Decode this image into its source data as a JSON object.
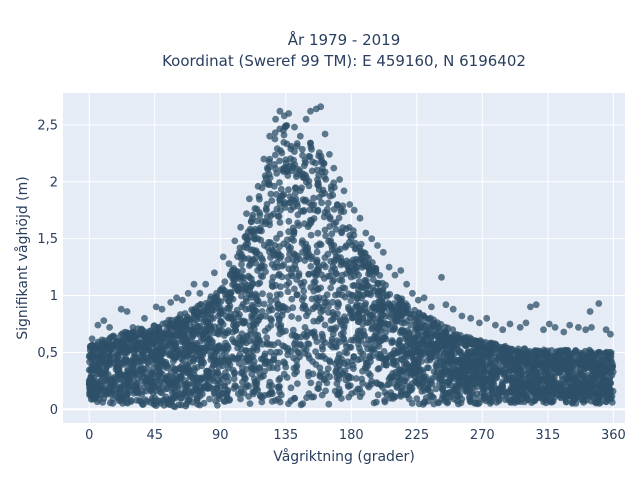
{
  "chart_data": {
    "type": "scatter",
    "title_line1": "År 1979 - 2019",
    "title_line2": "Koordinat (Sweref 99 TM): E 459160, N 6196402",
    "xlabel": "Vågriktning (grader)",
    "ylabel": "Signifikant våghöjd (m)",
    "xlim": [
      -18,
      368
    ],
    "ylim": [
      -0.12,
      2.78
    ],
    "xticks": [
      0,
      45,
      90,
      135,
      180,
      225,
      270,
      315,
      360
    ],
    "xtick_labels": [
      "0",
      "45",
      "90",
      "135",
      "180",
      "225",
      "270",
      "315",
      "360"
    ],
    "yticks": [
      0,
      0.5,
      1,
      1.5,
      2,
      2.5
    ],
    "ytick_labels": [
      "0",
      "0,5",
      "1",
      "1,5",
      "2",
      "2,5"
    ],
    "grid": true,
    "marker_color": "#2e5068",
    "envelope": {
      "description": "dense cloud of wave observations; approximate lower and upper bounds of the point cloud by direction",
      "x": [
        0,
        10,
        20,
        30,
        45,
        60,
        75,
        90,
        100,
        110,
        120,
        128,
        135,
        140,
        145,
        150,
        155,
        160,
        165,
        170,
        180,
        190,
        200,
        210,
        220,
        230,
        240,
        250,
        260,
        270,
        285,
        300,
        315,
        330,
        345,
        360
      ],
      "y_low": [
        0.05,
        0.05,
        0.05,
        0.05,
        0.03,
        0.02,
        0.02,
        0.03,
        0.04,
        0.04,
        0.04,
        0.04,
        0.04,
        0.04,
        0.04,
        0.04,
        0.04,
        0.04,
        0.04,
        0.04,
        0.04,
        0.04,
        0.04,
        0.04,
        0.04,
        0.04,
        0.04,
        0.04,
        0.04,
        0.05,
        0.05,
        0.05,
        0.05,
        0.05,
        0.05,
        0.05
      ],
      "y_high": [
        0.55,
        0.62,
        0.66,
        0.7,
        0.74,
        0.82,
        0.92,
        1.05,
        1.3,
        1.65,
        2.05,
        2.45,
        2.55,
        2.4,
        2.3,
        2.35,
        2.4,
        2.28,
        2.1,
        1.92,
        1.62,
        1.38,
        1.18,
        1.02,
        0.92,
        0.84,
        0.76,
        0.7,
        0.64,
        0.6,
        0.56,
        0.54,
        0.52,
        0.52,
        0.52,
        0.5
      ]
    },
    "outliers": [
      [
        2,
        0.62
      ],
      [
        6,
        0.74
      ],
      [
        10,
        0.78
      ],
      [
        14,
        0.72
      ],
      [
        22,
        0.88
      ],
      [
        26,
        0.86
      ],
      [
        30,
        0.72
      ],
      [
        38,
        0.8
      ],
      [
        46,
        0.9
      ],
      [
        50,
        0.88
      ],
      [
        56,
        0.94
      ],
      [
        60,
        0.98
      ],
      [
        64,
        0.96
      ],
      [
        68,
        1.02
      ],
      [
        72,
        1.1
      ],
      [
        76,
        1.02
      ],
      [
        80,
        1.1
      ],
      [
        86,
        1.2
      ],
      [
        92,
        1.34
      ],
      [
        96,
        1.28
      ],
      [
        100,
        1.48
      ],
      [
        104,
        1.6
      ],
      [
        108,
        1.72
      ],
      [
        110,
        1.85
      ],
      [
        112,
        1.68
      ],
      [
        116,
        1.96
      ],
      [
        120,
        2.2
      ],
      [
        124,
        2.4
      ],
      [
        128,
        2.55
      ],
      [
        131,
        2.62
      ],
      [
        134,
        2.58
      ],
      [
        137,
        2.6
      ],
      [
        141,
        2.48
      ],
      [
        145,
        2.4
      ],
      [
        149,
        2.55
      ],
      [
        152,
        2.62
      ],
      [
        156,
        2.64
      ],
      [
        159,
        2.66
      ],
      [
        162,
        2.42
      ],
      [
        165,
        2.24
      ],
      [
        168,
        2.12
      ],
      [
        172,
        2.02
      ],
      [
        175,
        1.92
      ],
      [
        179,
        1.8
      ],
      [
        182,
        1.75
      ],
      [
        186,
        1.68
      ],
      [
        190,
        1.55
      ],
      [
        194,
        1.5
      ],
      [
        198,
        1.44
      ],
      [
        202,
        1.38
      ],
      [
        206,
        1.25
      ],
      [
        210,
        1.18
      ],
      [
        214,
        1.22
      ],
      [
        218,
        1.1
      ],
      [
        222,
        1.02
      ],
      [
        226,
        0.96
      ],
      [
        230,
        0.98
      ],
      [
        235,
        0.9
      ],
      [
        242,
        1.16
      ],
      [
        245,
        0.92
      ],
      [
        250,
        0.88
      ],
      [
        256,
        0.82
      ],
      [
        262,
        0.8
      ],
      [
        268,
        0.76
      ],
      [
        273,
        0.8
      ],
      [
        279,
        0.74
      ],
      [
        284,
        0.7
      ],
      [
        289,
        0.75
      ],
      [
        296,
        0.72
      ],
      [
        300,
        0.76
      ],
      [
        303,
        0.9
      ],
      [
        307,
        0.92
      ],
      [
        312,
        0.7
      ],
      [
        316,
        0.75
      ],
      [
        320,
        0.72
      ],
      [
        326,
        0.68
      ],
      [
        330,
        0.74
      ],
      [
        336,
        0.72
      ],
      [
        341,
        0.7
      ],
      [
        344,
        0.86
      ],
      [
        345,
        0.72
      ],
      [
        350,
        0.93
      ],
      [
        355,
        0.7
      ],
      [
        358,
        0.66
      ]
    ]
  }
}
